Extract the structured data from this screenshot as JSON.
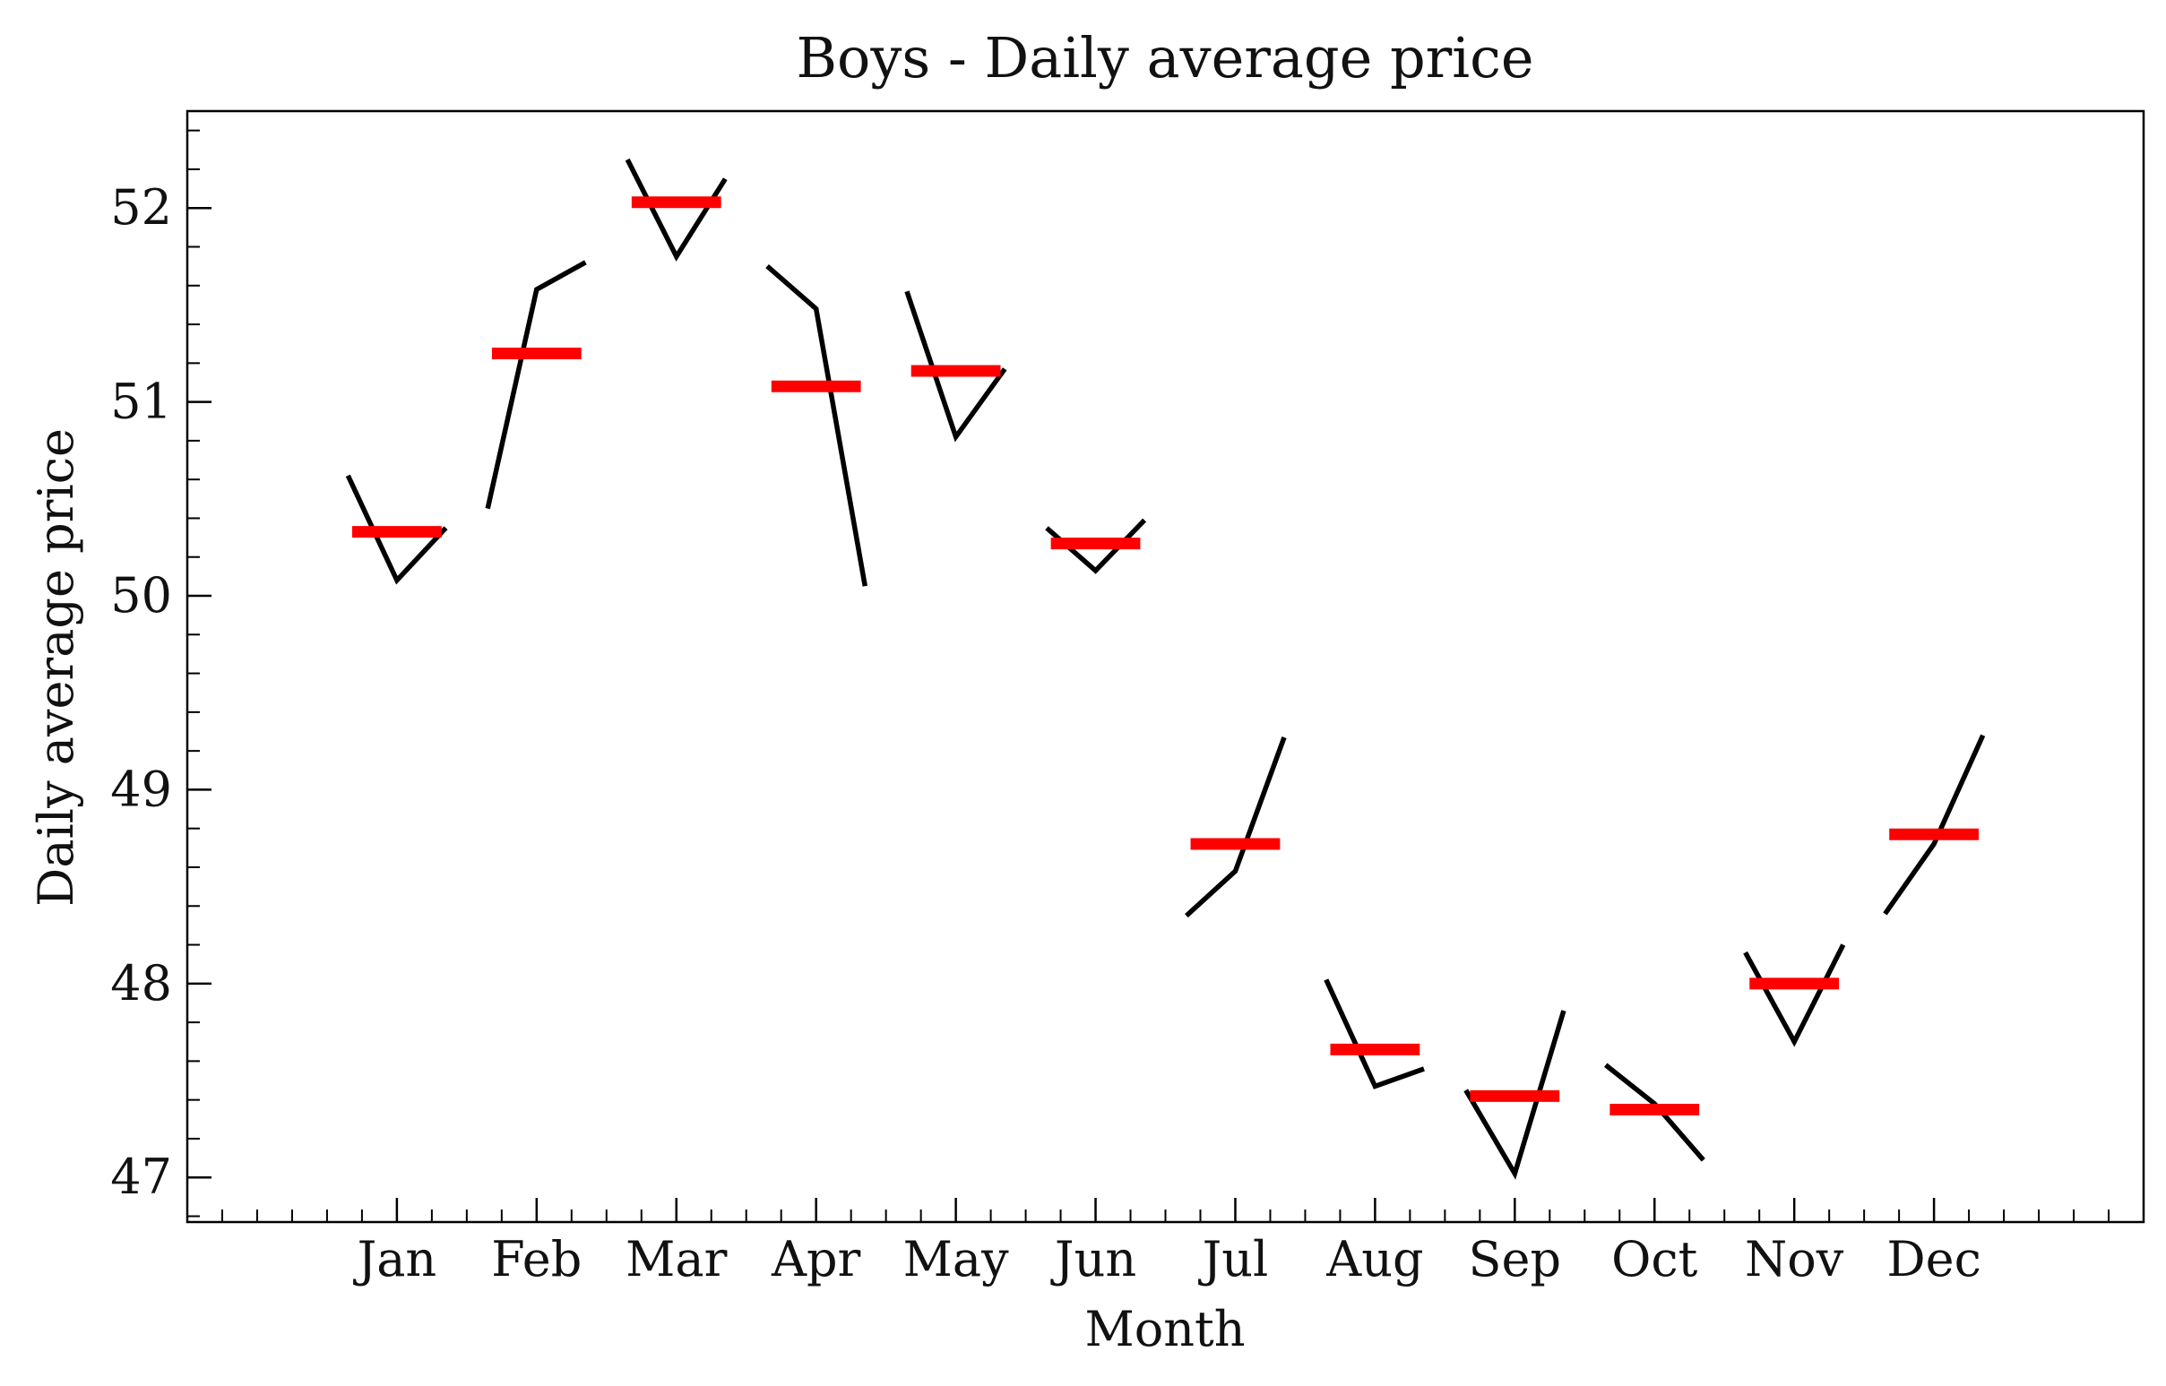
{
  "chart_data": {
    "type": "line",
    "title": "Boys - Daily average price",
    "xlabel": "Month",
    "ylabel": "Daily average price",
    "categories": [
      "Jan",
      "Feb",
      "Mar",
      "Apr",
      "May",
      "Jun",
      "Jul",
      "Aug",
      "Sep",
      "Oct",
      "Nov",
      "Dec"
    ],
    "yticks": [
      47,
      48,
      49,
      50,
      51,
      52
    ],
    "ylim": [
      46.77,
      52.5
    ],
    "xlim": [
      -1.5,
      12.5
    ],
    "grid": false,
    "series": [
      {
        "kind": "subseries",
        "color": "#000000",
        "points": [
          [
            [
              -0.35,
              50.62
            ],
            [
              0.0,
              50.08
            ],
            [
              0.35,
              50.35
            ]
          ],
          [
            [
              0.65,
              50.45
            ],
            [
              1.0,
              51.58
            ],
            [
              1.35,
              51.72
            ]
          ],
          [
            [
              1.65,
              52.25
            ],
            [
              2.0,
              51.75
            ],
            [
              2.35,
              52.15
            ]
          ],
          [
            [
              2.65,
              51.7
            ],
            [
              3.0,
              51.48
            ],
            [
              3.35,
              50.05
            ]
          ],
          [
            [
              3.65,
              51.57
            ],
            [
              4.0,
              50.82
            ],
            [
              4.35,
              51.17
            ]
          ],
          [
            [
              4.65,
              50.35
            ],
            [
              5.0,
              50.13
            ],
            [
              5.35,
              50.39
            ]
          ],
          [
            [
              5.65,
              48.35
            ],
            [
              6.0,
              48.58
            ],
            [
              6.35,
              49.27
            ]
          ],
          [
            [
              6.65,
              48.02
            ],
            [
              7.0,
              47.47
            ],
            [
              7.35,
              47.56
            ]
          ],
          [
            [
              7.65,
              47.45
            ],
            [
              8.0,
              47.02
            ],
            [
              8.35,
              47.86
            ]
          ],
          [
            [
              8.65,
              47.58
            ],
            [
              9.0,
              47.38
            ],
            [
              9.35,
              47.09
            ]
          ],
          [
            [
              9.65,
              48.16
            ],
            [
              10.0,
              47.7
            ],
            [
              10.35,
              48.2
            ]
          ],
          [
            [
              10.65,
              48.36
            ],
            [
              11.0,
              48.72
            ],
            [
              11.35,
              49.28
            ]
          ]
        ]
      },
      {
        "kind": "mean",
        "color": "#ff0000",
        "values": [
          50.33,
          51.25,
          52.03,
          51.08,
          51.16,
          50.27,
          48.72,
          47.66,
          47.42,
          47.35,
          48.0,
          48.77
        ]
      }
    ]
  }
}
